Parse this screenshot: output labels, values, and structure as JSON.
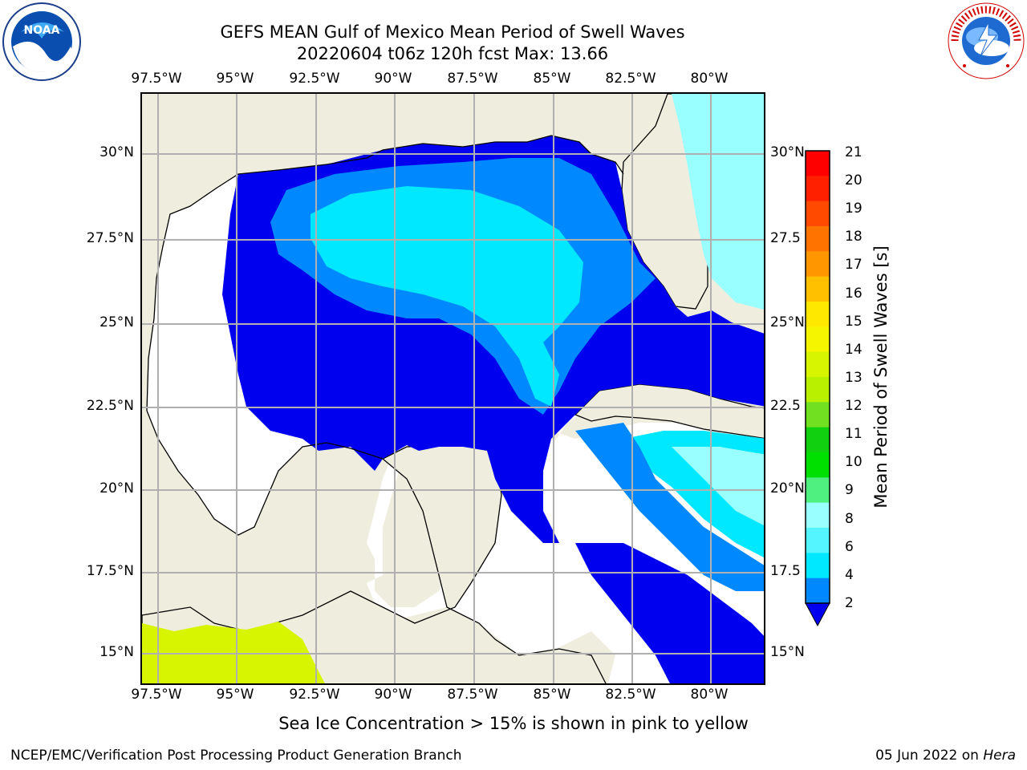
{
  "title": {
    "line1": "GEFS MEAN Gulf of Mexico Mean Period of Swell Waves",
    "line2": "20220604 t06z 120h fcst   Max: 13.66"
  },
  "axes": {
    "lon_ticks": [
      "97.5°W",
      "95°W",
      "92.5°W",
      "90°W",
      "87.5°W",
      "85°W",
      "82.5°W",
      "80°W"
    ],
    "lat_ticks_left": [
      "30°N",
      "27.5°N",
      "25°N",
      "22.5°N",
      "20°N",
      "17.5°N",
      "15°N"
    ],
    "lat_ticks_right": [
      "30°N",
      "27.5",
      "25°N",
      "22.5",
      "20°N",
      "17.5",
      "15°N"
    ]
  },
  "colorbar": {
    "title": "Mean Period of Swell Waves [s]",
    "labels": [
      "21",
      "20",
      "19",
      "18",
      "17",
      "16",
      "15",
      "14",
      "13",
      "12",
      "11",
      "10",
      "9",
      "8",
      "6",
      "4",
      "2"
    ],
    "colors": [
      "#ff0000",
      "#ff2000",
      "#ff4a00",
      "#ff7400",
      "#ff9600",
      "#ffc000",
      "#ffe800",
      "#f5f500",
      "#d8f500",
      "#b8f000",
      "#70e020",
      "#10d010",
      "#00e000",
      "#50f080",
      "#99ffff",
      "#55f5ff",
      "#00e8ff",
      "#0088ff"
    ],
    "extend_color": "#0000ee"
  },
  "logos": {
    "left_text": "NOAA",
    "right_text": "NATIONAL WEATHER SERVICE"
  },
  "footnote": "Sea Ice Concentration > 15% is shown in pink to yellow",
  "credit_left": "NCEP/EMC/Verification Post Processing Product Generation Branch",
  "credit_right_date": "05 Jun 2022 on ",
  "credit_right_host": "Hera",
  "colors": {
    "land": "#efeede",
    "open_water": "#ffffff",
    "level_2_4": "#0000ee",
    "level_4_6": "#0088ff",
    "level_6_8": "#00e8ff",
    "level_8_9": "#99ffff",
    "grid": "#b0b0b0",
    "sea_ice": "#d8f500"
  }
}
